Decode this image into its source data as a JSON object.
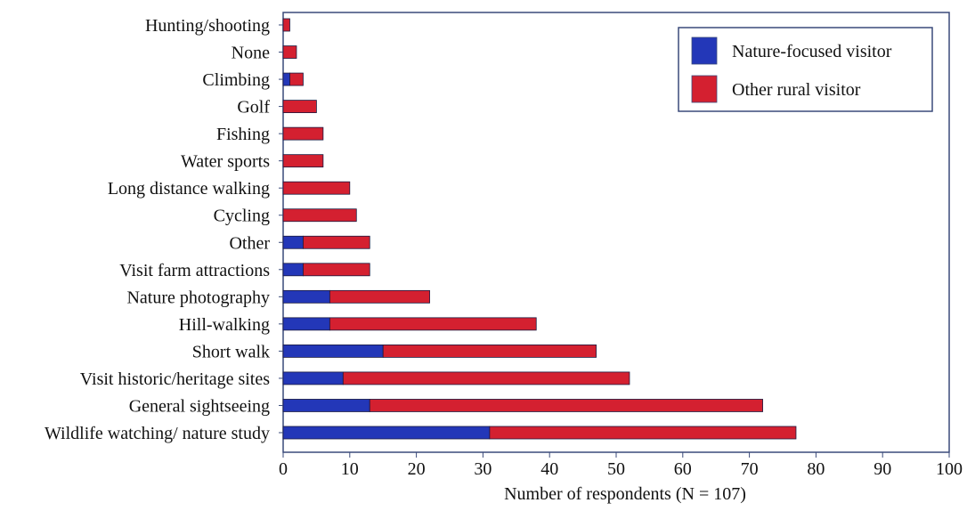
{
  "chart_data": {
    "type": "bar",
    "orientation": "horizontal",
    "stacked": true,
    "categories": [
      "Hunting/shooting",
      "None",
      "Climbing",
      "Golf",
      "Fishing",
      "Water sports",
      "Long distance walking",
      "Cycling",
      "Other",
      "Visit farm attractions",
      "Nature photography",
      "Hill-walking",
      "Short walk",
      "Visit historic/heritage sites",
      "General sightseeing",
      "Wildlife watching/ nature study"
    ],
    "series": [
      {
        "name": "Nature-focused visitor",
        "color": "#2337b8",
        "values": [
          0,
          0,
          1,
          0,
          0,
          0,
          0,
          0,
          3,
          3,
          7,
          7,
          15,
          9,
          13,
          31
        ]
      },
      {
        "name": "Other rural visitor",
        "color": "#d42030",
        "values": [
          1,
          2,
          2,
          5,
          6,
          6,
          10,
          11,
          10,
          10,
          15,
          31,
          32,
          43,
          59,
          46
        ]
      }
    ],
    "title": "",
    "xlabel": "Number of respondents (N = 107)",
    "ylabel": "",
    "xlim": [
      0,
      100
    ],
    "xticks": [
      0,
      10,
      20,
      30,
      40,
      50,
      60,
      70,
      80,
      90,
      100
    ],
    "grid": false,
    "legend_position": "top-right"
  }
}
